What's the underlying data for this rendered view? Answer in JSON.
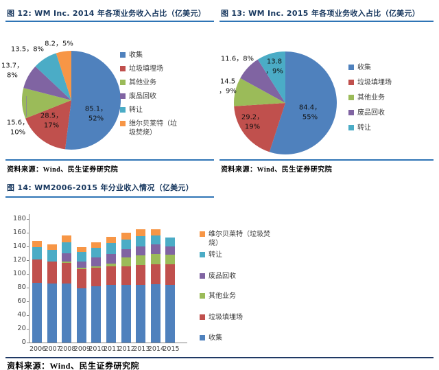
{
  "figure12": {
    "title": "图 12: WM Inc. 2014 年各项业务收入占比（亿美元）",
    "source": "资料来源：Wind、民生证券研究院"
  },
  "figure13": {
    "title": "图 13: WM Inc. 2015 年各项业务收入占比（亿美元）",
    "source": "资料来源：Wind、民生证券研究院"
  },
  "figure14": {
    "title": "图 14: WM2006-2015 年分业收入情况（亿美元）",
    "source": "资料来源：Wind、民生证券研究院"
  },
  "colors": {
    "collection_blue": "#4F81BD",
    "landfill_red": "#C0504D",
    "other_green": "#9BBB59",
    "recycling_purple": "#8064A2",
    "transfer_teal": "#4BACC6",
    "wheelabrator_orange": "#F79646",
    "title_navy": "#17375E",
    "rule_blue": "#2E74B5"
  },
  "chart_data": [
    {
      "id": "pie-2014",
      "type": "pie",
      "title": "WM Inc. 2014 年各项业务收入占比（亿美元）",
      "labels": [
        "收集",
        "垃圾填埋场",
        "其他业务",
        "废品回收",
        "转让",
        "维尔贝莱特（垃圾焚烧）"
      ],
      "values": [
        85.1,
        28.5,
        15.6,
        13.7,
        13.5,
        8.2
      ],
      "percents": [
        52,
        17,
        10,
        8,
        8,
        5
      ],
      "colors": [
        "#4F81BD",
        "#C0504D",
        "#9BBB59",
        "#8064A2",
        "#4BACC6",
        "#F79646"
      ],
      "legend_position": "right",
      "data_labels": [
        {
          "lines": [
            "85.1，",
            "52%"
          ],
          "x": 132,
          "y": 158
        },
        {
          "lines": [
            "28.5，",
            "17%"
          ],
          "x": 67,
          "y": 168
        },
        {
          "lines": [
            "15.6，",
            "10%"
          ],
          "x": 18,
          "y": 178
        },
        {
          "lines": [
            "13.7，",
            "8%"
          ],
          "x": 10,
          "y": 95
        },
        {
          "lines": [
            "13.5，8%"
          ],
          "x": 32,
          "y": 64
        },
        {
          "lines": [
            "8.2，5%"
          ],
          "x": 78,
          "y": 56
        }
      ]
    },
    {
      "id": "pie-2015",
      "type": "pie",
      "title": "WM Inc. 2015 年各项业务收入占比（亿美元）",
      "labels": [
        "收集",
        "垃圾填埋场",
        "其他业务",
        "废品回收",
        "转让"
      ],
      "values": [
        84.4,
        29.2,
        14.5,
        11.6,
        13.8
      ],
      "percents": [
        55,
        19,
        9,
        8,
        9
      ],
      "colors": [
        "#4F81BD",
        "#C0504D",
        "#9BBB59",
        "#8064A2",
        "#4BACC6"
      ],
      "legend_position": "right",
      "data_labels": [
        {
          "lines": [
            "84.4，",
            "55%"
          ],
          "x": 132,
          "y": 156
        },
        {
          "lines": [
            "29.2，",
            "19%"
          ],
          "x": 48,
          "y": 170
        },
        {
          "lines": [
            "14.5",
            "，9%"
          ],
          "x": 12,
          "y": 118
        },
        {
          "lines": [
            "11.6，8%"
          ],
          "x": 26,
          "y": 78
        },
        {
          "lines": [
            "13.8",
            "，9%"
          ],
          "x": 80,
          "y": 89
        }
      ]
    },
    {
      "id": "bar-2006-2015",
      "type": "bar",
      "stacked": true,
      "title": "WM2006-2015 年分业收入情况（亿美元）",
      "categories": [
        "2006",
        "2007",
        "2008",
        "2009",
        "2010",
        "2011",
        "2012",
        "2013",
        "2014",
        "2015"
      ],
      "series": [
        {
          "name": "收集",
          "color": "#4F81BD",
          "values": [
            87,
            86,
            86,
            79,
            82,
            84,
            84,
            84,
            85.1,
            84.4
          ]
        },
        {
          "name": "垃圾填埋场",
          "color": "#C0504D",
          "values": [
            34,
            32,
            30,
            28,
            27,
            27,
            27,
            29,
            28.5,
            29.2
          ]
        },
        {
          "name": "其他业务",
          "color": "#9BBB59",
          "values": [
            0,
            0,
            2,
            2,
            2,
            4,
            13,
            14,
            15.6,
            14.5
          ]
        },
        {
          "name": "废品回收",
          "color": "#8064A2",
          "values": [
            0,
            0,
            12,
            9,
            13,
            14,
            12,
            13,
            13.7,
            11.6
          ]
        },
        {
          "name": "转让",
          "color": "#4BACC6",
          "values": [
            18,
            17,
            16,
            14,
            14,
            16,
            14,
            15,
            13.5,
            13.8
          ]
        },
        {
          "name": "维尔贝莱特（垃圾焚烧）",
          "color": "#F79646",
          "values": [
            9,
            8,
            10,
            7,
            8,
            9,
            10,
            10,
            8.2,
            0
          ]
        }
      ],
      "ylim": [
        0,
        180
      ],
      "ytick_step": 20,
      "grid": false,
      "legend_position": "right",
      "legend_order_top_to_bottom": [
        "维尔贝莱特（垃圾焚烧）",
        "转让",
        "废品回收",
        "其他业务",
        "垃圾填埋场",
        "收集"
      ]
    }
  ]
}
